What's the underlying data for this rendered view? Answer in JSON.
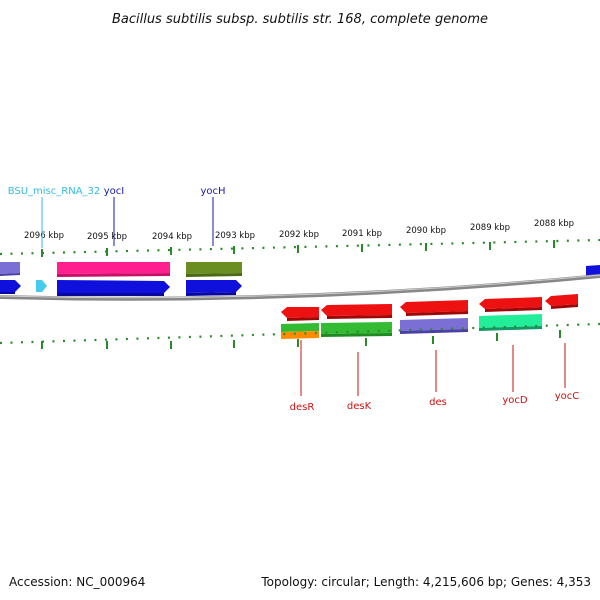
{
  "title": "Bacillus subtilis subsp. subtilis str. 168, complete genome",
  "accession": "Accession: NC_000964",
  "summary": "Topology: circular; Length: 4,215,606 bp; Genes: 4,353",
  "ruler_labels": [
    "2096 kbp",
    "2095 kbp",
    "2094 kbp",
    "2093 kbp",
    "2092 kbp",
    "2091 kbp",
    "2090 kbp",
    "2089 kbp",
    "2088 kbp"
  ],
  "top_labels": [
    {
      "text": "BSU_misc_RNA_32",
      "color": "#33bbdd"
    },
    {
      "text": "yocI",
      "color": "#1a1aaa"
    },
    {
      "text": "yocH",
      "color": "#1a1aaa"
    }
  ],
  "bottom_labels": [
    {
      "text": "desR",
      "color": "#cc1111"
    },
    {
      "text": "desK",
      "color": "#cc1111"
    },
    {
      "text": "des",
      "color": "#cc1111"
    },
    {
      "text": "yocD",
      "color": "#cc1111"
    },
    {
      "text": "yocC",
      "color": "#cc1111"
    }
  ],
  "colors": {
    "forward_gene": "#1010dd",
    "reverse_gene": "#ee1111",
    "rna": "#44ccee",
    "backbone": "#888888",
    "ticks": "#2a8a2a"
  }
}
